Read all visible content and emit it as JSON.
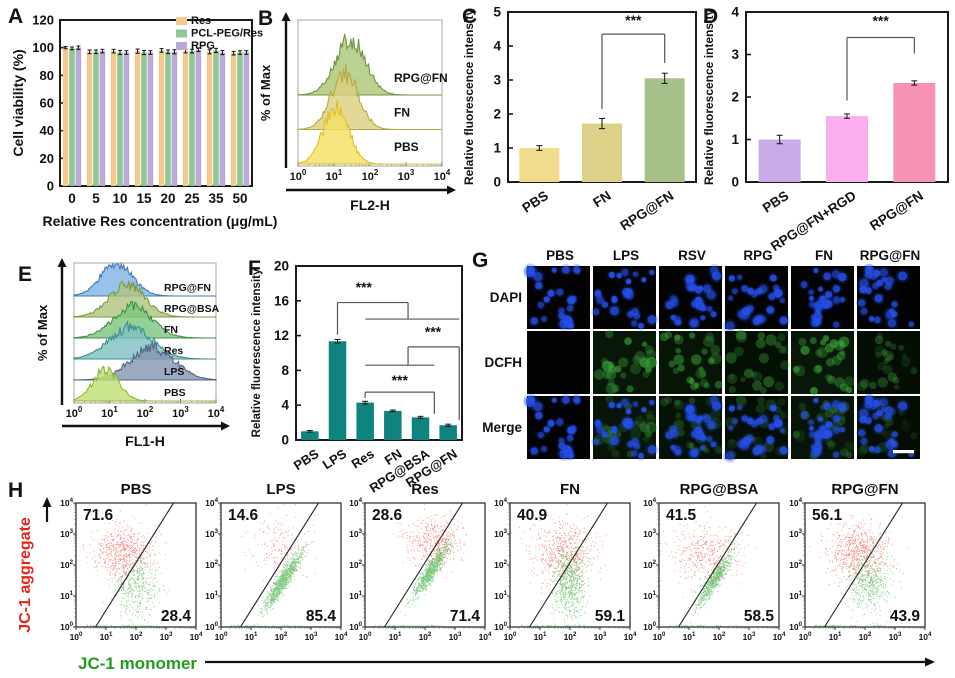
{
  "panels": {
    "A": {
      "label": "A"
    },
    "B": {
      "label": "B"
    },
    "C": {
      "label": "C"
    },
    "D": {
      "label": "D"
    },
    "E": {
      "label": "E"
    },
    "F": {
      "label": "F"
    },
    "G": {
      "label": "G"
    },
    "H": {
      "label": "H"
    }
  },
  "chart_data": [
    {
      "id": "A",
      "type": "bar",
      "grouped": true,
      "xlabel": "Relative Res concentration (μg/mL)",
      "ylabel": "Cell viability (%)",
      "ylim": [
        0,
        120
      ],
      "yticks": [
        0,
        20,
        40,
        60,
        80,
        100,
        120
      ],
      "categories": [
        "0",
        "5",
        "10",
        "15",
        "20",
        "25",
        "35",
        "50"
      ],
      "legend_position": "top-right",
      "series": [
        {
          "name": "Res",
          "color": "#F6C98F",
          "values": [
            100,
            97,
            97.5,
            97.5,
            98,
            97.5,
            97,
            96
          ],
          "errors": [
            0.8,
            1.3,
            1.3,
            1.5,
            1.3,
            1.3,
            1.5,
            1.3
          ]
        },
        {
          "name": "PCL-PEG/Res",
          "color": "#8FC795",
          "values": [
            99.5,
            97,
            96.5,
            96.5,
            97,
            97.5,
            98,
            96.5
          ],
          "errors": [
            1.0,
            1.3,
            1.5,
            1.5,
            1.3,
            1.3,
            1.5,
            1.3
          ]
        },
        {
          "name": "RPG",
          "color": "#BCA7D9",
          "values": [
            100,
            97.5,
            96.5,
            96.5,
            97,
            98.5,
            96.5,
            96.5
          ],
          "errors": [
            1.2,
            1.3,
            1.3,
            1.3,
            1.5,
            1.3,
            1.5,
            1.3
          ]
        }
      ]
    },
    {
      "id": "B",
      "type": "flow-histogram",
      "xlabel": "FL2-H",
      "ylabel": "% of Max",
      "log_ticks": [
        0,
        1,
        2,
        3,
        4
      ],
      "traces": [
        {
          "name": "RPG@FN",
          "peak": 1.45,
          "width": 0.42,
          "fill": "#A9C573",
          "stroke": "#6F9442"
        },
        {
          "name": "FN",
          "peak": 1.3,
          "width": 0.38,
          "fill": "#DBCF7F",
          "stroke": "#B7AA3E"
        },
        {
          "name": "PBS",
          "peak": 1.05,
          "width": 0.35,
          "fill": "#F4E05F",
          "stroke": "#DCBF2C"
        }
      ]
    },
    {
      "id": "C",
      "type": "bar",
      "ylabel": "Relative fluorescence intensity",
      "ylim": [
        0,
        5
      ],
      "yticks": [
        0,
        1,
        2,
        3,
        4,
        5
      ],
      "categories": [
        "PBS",
        "FN",
        "RPG@FN"
      ],
      "values": [
        1.0,
        1.72,
        3.05
      ],
      "errors": [
        0.07,
        0.15,
        0.15
      ],
      "colors": [
        "#F1DD8D",
        "#DBD189",
        "#A6C089"
      ],
      "sig": [
        {
          "label": "***",
          "lx": 1.5,
          "ly": 4.62,
          "segs": [
            [
              1,
              2.15,
              1,
              4.35
            ],
            [
              1,
              4.35,
              2,
              4.35
            ],
            [
              2,
              4.35,
              2,
              3.5
            ]
          ]
        }
      ]
    },
    {
      "id": "D",
      "type": "bar",
      "ylabel": "Relative fluorescence intensity",
      "ylim": [
        0,
        4
      ],
      "yticks": [
        0,
        1,
        2,
        3,
        4
      ],
      "categories": [
        "PBS",
        "RPG@FN+RGD",
        "RPG@FN"
      ],
      "values": [
        1.0,
        1.55,
        2.33
      ],
      "errors": [
        0.1,
        0.05,
        0.05
      ],
      "colors": [
        "#C8ABE8",
        "#FBADEF",
        "#F892B5"
      ],
      "sig": [
        {
          "label": "***",
          "lx": 1.5,
          "ly": 3.68,
          "segs": [
            [
              1,
              1.92,
              1,
              3.4
            ],
            [
              1,
              3.4,
              2,
              3.4
            ],
            [
              2,
              3.4,
              2,
              3.02
            ]
          ]
        }
      ]
    },
    {
      "id": "E",
      "type": "flow-histogram",
      "xlabel": "FL1-H",
      "ylabel": "% of Max",
      "log_ticks": [
        0,
        1,
        2,
        3,
        4
      ],
      "traces": [
        {
          "name": "RPG@FN",
          "peak": 1.2,
          "width": 0.45,
          "fill": "#7FB3E6",
          "stroke": "#3E7AB8"
        },
        {
          "name": "RPG@BSA",
          "peak": 1.5,
          "width": 0.5,
          "fill": "#AEC47D",
          "stroke": "#7D9A43"
        },
        {
          "name": "FN",
          "peak": 1.65,
          "width": 0.55,
          "fill": "#7CC47F",
          "stroke": "#3F9045"
        },
        {
          "name": "Res",
          "peak": 1.6,
          "width": 0.6,
          "fill": "#7FC0C0",
          "stroke": "#3F8F8F"
        },
        {
          "name": "LPS",
          "peak": 2.2,
          "width": 0.62,
          "fill": "#8395B0",
          "stroke": "#506489"
        },
        {
          "name": "PBS",
          "peak": 0.9,
          "width": 0.36,
          "fill": "#BFE070",
          "stroke": "#8FB83F"
        }
      ]
    },
    {
      "id": "F",
      "type": "bar",
      "ylabel": "Relative fluorescence intensity",
      "ylim": [
        0,
        20
      ],
      "yticks": [
        0,
        4,
        8,
        12,
        16,
        20
      ],
      "categories": [
        "PBS",
        "LPS",
        "Res",
        "FN",
        "RPG@BSA",
        "RPG@FN"
      ],
      "values": [
        1.0,
        11.35,
        4.3,
        3.35,
        2.6,
        1.7
      ],
      "errors": [
        0.1,
        0.2,
        0.15,
        0.1,
        0.12,
        0.12
      ],
      "color": "#0F837E",
      "sig": [
        {
          "label": "***",
          "lx": 1.95,
          "ly": 17.0,
          "segs": [
            [
              1,
              12.1,
              1,
              15.8
            ],
            [
              1,
              15.8,
              3.55,
              15.8
            ],
            [
              3.55,
              15.8,
              3.55,
              13.9
            ],
            [
              2.0,
              13.9,
              5.4,
              13.9
            ]
          ]
        },
        {
          "label": "***",
          "lx": 4.45,
          "ly": 11.9,
          "segs": [
            [
              3.55,
              8.6,
              3.55,
              10.7
            ],
            [
              3.55,
              10.7,
              5.4,
              10.7
            ],
            [
              5.4,
              10.7,
              5.4,
              2.3
            ],
            [
              2.0,
              8.6,
              4.5,
              8.6
            ]
          ]
        },
        {
          "label": "***",
          "lx": 3.25,
          "ly": 6.3,
          "segs": [
            [
              2,
              4.85,
              2,
              5.5
            ],
            [
              2,
              5.5,
              4.5,
              5.5
            ],
            [
              4.5,
              5.5,
              4.5,
              3.0
            ]
          ]
        }
      ]
    },
    {
      "id": "G",
      "type": "microscopy-grid",
      "rows": [
        "DAPI",
        "DCFH",
        "Merge"
      ],
      "columns": [
        "PBS",
        "LPS",
        "RSV",
        "RPG",
        "FN",
        "RPG@FN"
      ],
      "dcfh_intensity": [
        0,
        0.95,
        0.85,
        0.6,
        0.95,
        0.5
      ],
      "merge_green": [
        0,
        0.8,
        0.7,
        0.5,
        0.8,
        0.45
      ],
      "scale_bar": true
    },
    {
      "id": "H",
      "type": "flow-scatter",
      "xlabel": "JC-1 monomer",
      "ylabel": "JC-1 aggregate",
      "xlabel_color": "#1E9E1E",
      "ylabel_color": "#E8231A",
      "log_ticks": [
        0,
        1,
        2,
        3,
        4
      ],
      "gate": [
        0.65,
        0,
        3.25,
        4
      ],
      "dot_colors": {
        "red": "#F0352B",
        "green": "#12A01E"
      },
      "plots": [
        {
          "title": "PBS",
          "upper_left": "71.6",
          "lower_right": "28.4",
          "red": {
            "shape": "blob",
            "cx": 1.55,
            "cy": 2.45,
            "sx": 0.5,
            "sy": 0.45,
            "n": 750
          },
          "green": {
            "shape": "blob",
            "cx": 2.0,
            "cy": 1.3,
            "sx": 0.38,
            "sy": 0.5,
            "n": 550
          }
        },
        {
          "title": "LPS",
          "upper_left": "14.6",
          "lower_right": "85.4",
          "red": {
            "shape": "blob",
            "cx": 1.9,
            "cy": 2.6,
            "sx": 0.55,
            "sy": 0.5,
            "n": 220
          },
          "green": {
            "shape": "diag",
            "cx": 2.05,
            "cy": 1.5,
            "sx": 0.55,
            "sy": 0.1,
            "n": 1300
          }
        },
        {
          "title": "Res",
          "upper_left": "28.6",
          "lower_right": "71.4",
          "red": {
            "shape": "blob",
            "cx": 2.25,
            "cy": 2.75,
            "sx": 0.5,
            "sy": 0.42,
            "n": 550
          },
          "green": {
            "shape": "diag",
            "cx": 2.2,
            "cy": 1.85,
            "sx": 0.5,
            "sy": 0.1,
            "n": 1200
          }
        },
        {
          "title": "FN",
          "upper_left": "40.9",
          "lower_right": "59.1",
          "red": {
            "shape": "blob",
            "cx": 1.75,
            "cy": 2.45,
            "sx": 0.55,
            "sy": 0.5,
            "n": 650
          },
          "green": {
            "shape": "blob",
            "cx": 1.95,
            "cy": 1.5,
            "sx": 0.28,
            "sy": 0.55,
            "n": 950
          }
        },
        {
          "title": "RPG@BSA",
          "upper_left": "41.5",
          "lower_right": "58.5",
          "red": {
            "shape": "blob",
            "cx": 1.55,
            "cy": 2.35,
            "sx": 0.6,
            "sy": 0.5,
            "n": 520
          },
          "green": {
            "shape": "diag",
            "cx": 1.85,
            "cy": 1.55,
            "sx": 0.5,
            "sy": 0.1,
            "n": 950
          }
        },
        {
          "title": "RPG@FN",
          "upper_left": "56.1",
          "lower_right": "43.9",
          "red": {
            "shape": "blob",
            "cx": 1.75,
            "cy": 2.45,
            "sx": 0.5,
            "sy": 0.45,
            "n": 800
          },
          "green": {
            "shape": "blob",
            "cx": 2.1,
            "cy": 1.45,
            "sx": 0.38,
            "sy": 0.5,
            "n": 650
          }
        }
      ]
    }
  ]
}
